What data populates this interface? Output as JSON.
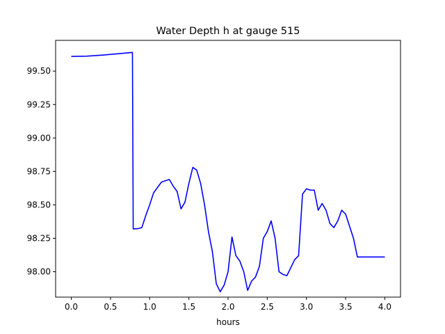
{
  "chart_data": {
    "type": "line",
    "title": "Water Depth h at gauge 515",
    "xlabel": "hours",
    "ylabel": "",
    "xlim": [
      -0.2,
      4.2
    ],
    "ylim": [
      97.81,
      99.73
    ],
    "grid": false,
    "x_ticks": [
      0.0,
      0.5,
      1.0,
      1.5,
      2.0,
      2.5,
      3.0,
      3.5,
      4.0
    ],
    "x_tick_labels": [
      "0.0",
      "0.5",
      "1.0",
      "1.5",
      "2.0",
      "2.5",
      "3.0",
      "3.5",
      "4.0"
    ],
    "y_ticks": [
      98.0,
      98.25,
      98.5,
      98.75,
      99.0,
      99.25,
      99.5
    ],
    "y_tick_labels": [
      "98.00",
      "98.25",
      "98.50",
      "98.75",
      "99.00",
      "99.25",
      "99.50"
    ],
    "series": [
      {
        "color": "#0000ff",
        "x": [
          0.0,
          0.2,
          0.4,
          0.6,
          0.78,
          0.79,
          0.8,
          0.85,
          0.9,
          0.95,
          1.0,
          1.05,
          1.1,
          1.15,
          1.2,
          1.25,
          1.3,
          1.35,
          1.4,
          1.45,
          1.5,
          1.55,
          1.6,
          1.65,
          1.7,
          1.75,
          1.8,
          1.85,
          1.9,
          1.95,
          2.0,
          2.05,
          2.1,
          2.15,
          2.2,
          2.25,
          2.3,
          2.35,
          2.4,
          2.45,
          2.5,
          2.55,
          2.6,
          2.65,
          2.7,
          2.75,
          2.8,
          2.85,
          2.9,
          2.95,
          3.0,
          3.05,
          3.1,
          3.15,
          3.2,
          3.25,
          3.3,
          3.35,
          3.4,
          3.45,
          3.5,
          3.55,
          3.6,
          3.65,
          3.7,
          3.75,
          3.8,
          3.85,
          3.9,
          3.95,
          4.0
        ],
        "y": [
          99.61,
          99.612,
          99.62,
          99.63,
          99.64,
          98.32,
          98.32,
          98.322,
          98.33,
          98.42,
          98.5,
          98.59,
          98.63,
          98.67,
          98.68,
          98.69,
          98.64,
          98.6,
          98.47,
          98.52,
          98.66,
          98.78,
          98.76,
          98.66,
          98.5,
          98.3,
          98.15,
          97.91,
          97.85,
          97.9,
          98.0,
          98.26,
          98.12,
          98.08,
          98.0,
          97.86,
          97.93,
          97.96,
          98.04,
          98.25,
          98.3,
          98.38,
          98.25,
          98.0,
          97.98,
          97.97,
          98.03,
          98.09,
          98.12,
          98.58,
          98.62,
          98.61,
          98.61,
          98.46,
          98.51,
          98.46,
          98.36,
          98.33,
          98.38,
          98.46,
          98.43,
          98.34,
          98.25,
          98.11,
          98.11,
          98.11,
          98.11,
          98.11,
          98.11,
          98.11,
          98.11
        ]
      }
    ]
  }
}
